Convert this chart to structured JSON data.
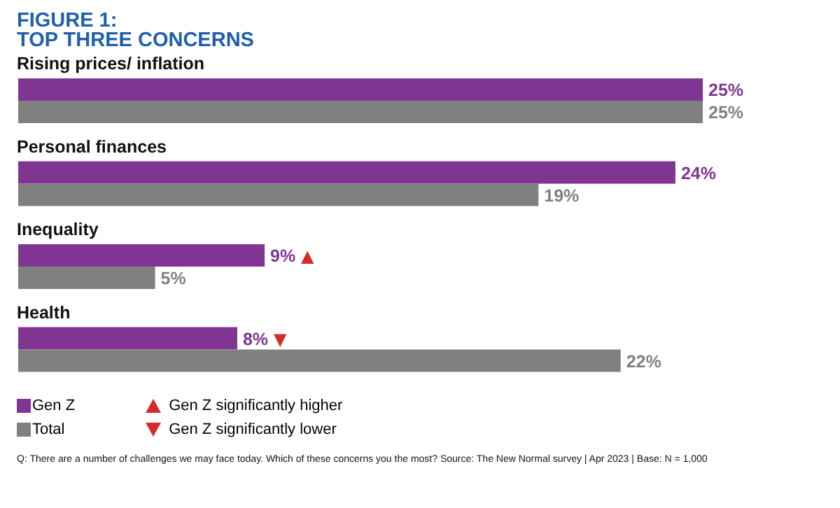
{
  "chart_data": {
    "type": "bar",
    "orientation": "horizontal",
    "title": "FIGURE 1:\nTOP THREE CONCERNS",
    "categories": [
      "Rising prices/ inflation",
      "Personal finances",
      "Inequality",
      "Health"
    ],
    "series": [
      {
        "name": "Gen Z",
        "color": "#7f3591",
        "values": [
          25,
          24,
          9,
          8
        ],
        "value_labels": [
          "25%",
          "24%",
          "9%",
          "8%"
        ]
      },
      {
        "name": "Total",
        "color": "#808080",
        "values": [
          25,
          19,
          5,
          22
        ],
        "value_labels": [
          "25%",
          "19%",
          "5%",
          "22%"
        ]
      }
    ],
    "tick_labels": "y",
    "grid": false,
    "legend": "bottom left",
    "annotations": [
      {
        "text": "▲",
        "x": 9,
        "y": "Inequality"
      },
      {
        "text": "▼",
        "x": 8,
        "y": "Health"
      },
      "Gen Z significantly higher",
      "Gen Z significantly lower",
      "Q: There are a number of challenges we may face today.  Which of these concerns you the most? Source: The New Normal survey | Apr 2023 | Base: N = 1,000"
    ]
  }
}
